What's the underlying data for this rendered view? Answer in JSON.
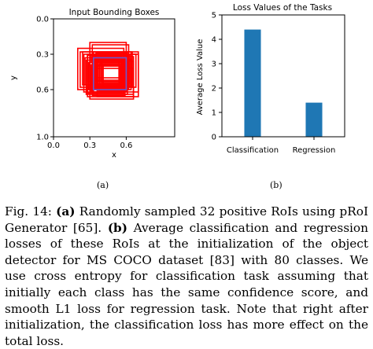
{
  "chart_data": [
    {
      "type": "scatter",
      "title": "Input Bounding Boxes",
      "xlabel": "x",
      "ylabel": "y",
      "xlim": [
        0.0,
        1.0
      ],
      "ylim": [
        1.0,
        0.0
      ],
      "x_ticks": [
        "0.0",
        "0.3",
        "0.6"
      ],
      "y_ticks": [
        "0.0",
        "0.3",
        "0.6",
        "1.0"
      ],
      "grid": false,
      "edge_color": "#ff0000",
      "highlight_color": "#6a5acd",
      "highlight_box": [
        0.33,
        0.33,
        0.6,
        0.6
      ],
      "boxes": [
        [
          0.3,
          0.2,
          0.6,
          0.5
        ],
        [
          0.32,
          0.22,
          0.62,
          0.55
        ],
        [
          0.2,
          0.25,
          0.58,
          0.6
        ],
        [
          0.22,
          0.28,
          0.65,
          0.58
        ],
        [
          0.25,
          0.3,
          0.6,
          0.62
        ],
        [
          0.24,
          0.28,
          0.64,
          0.56
        ],
        [
          0.28,
          0.3,
          0.7,
          0.66
        ],
        [
          0.3,
          0.32,
          0.66,
          0.68
        ],
        [
          0.33,
          0.28,
          0.7,
          0.62
        ],
        [
          0.35,
          0.32,
          0.62,
          0.58
        ],
        [
          0.36,
          0.35,
          0.64,
          0.6
        ],
        [
          0.34,
          0.34,
          0.57,
          0.58
        ],
        [
          0.3,
          0.36,
          0.6,
          0.6
        ],
        [
          0.38,
          0.38,
          0.62,
          0.56
        ],
        [
          0.4,
          0.36,
          0.6,
          0.54
        ],
        [
          0.28,
          0.4,
          0.58,
          0.63
        ],
        [
          0.32,
          0.42,
          0.66,
          0.64
        ],
        [
          0.36,
          0.4,
          0.55,
          0.57
        ],
        [
          0.26,
          0.33,
          0.54,
          0.56
        ],
        [
          0.29,
          0.37,
          0.62,
          0.6
        ],
        [
          0.34,
          0.3,
          0.68,
          0.58
        ],
        [
          0.37,
          0.33,
          0.59,
          0.61
        ],
        [
          0.31,
          0.39,
          0.56,
          0.62
        ],
        [
          0.39,
          0.31,
          0.63,
          0.55
        ],
        [
          0.27,
          0.35,
          0.61,
          0.64
        ],
        [
          0.33,
          0.37,
          0.58,
          0.59
        ],
        [
          0.35,
          0.29,
          0.61,
          0.52
        ],
        [
          0.3,
          0.34,
          0.64,
          0.57
        ],
        [
          0.41,
          0.39,
          0.61,
          0.59
        ],
        [
          0.28,
          0.31,
          0.56,
          0.53
        ],
        [
          0.36,
          0.36,
          0.66,
          0.66
        ],
        [
          0.32,
          0.33,
          0.59,
          0.65
        ]
      ]
    },
    {
      "type": "bar",
      "title": "Loss Values of the Tasks",
      "xlabel": "",
      "ylabel": "Average Loss Value",
      "categories": [
        "Classification",
        "Regression"
      ],
      "values": [
        4.4,
        1.4
      ],
      "ylim": [
        0,
        5
      ],
      "y_ticks": [
        "0",
        "1",
        "2",
        "3",
        "4",
        "5"
      ],
      "bar_color": "#1f77b4",
      "grid": false
    }
  ],
  "subfigure_labels": [
    "(a)",
    "(b)"
  ],
  "caption": {
    "prefix": "Fig. 14: ",
    "a_label": "(a)",
    "a_text": " Randomly sampled 32 positive RoIs using pRoI Generator [65]. ",
    "b_label": "(b)",
    "b_text": " Average classification and regression losses of these RoIs at the initialization of the object detector for MS COCO dataset [83] with 80 classes. We use cross entropy for classification task assuming that initially each class has the same confidence score, and smooth L1 loss for regression task. Note that right after initialization, the classification loss has more effect on the total loss."
  }
}
